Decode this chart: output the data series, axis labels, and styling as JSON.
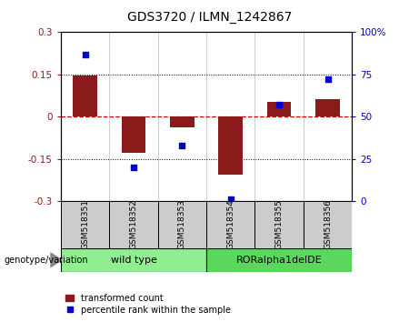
{
  "title": "GDS3720 / ILMN_1242867",
  "samples": [
    "GSM518351",
    "GSM518352",
    "GSM518353",
    "GSM518354",
    "GSM518355",
    "GSM518356"
  ],
  "bar_values": [
    0.147,
    -0.127,
    -0.038,
    -0.205,
    0.052,
    0.062
  ],
  "dot_values": [
    87,
    20,
    33,
    1,
    57,
    72
  ],
  "bar_color": "#8b1a1a",
  "dot_color": "#0000cc",
  "ylim_left": [
    -0.3,
    0.3
  ],
  "ylim_right": [
    0,
    100
  ],
  "yticks_left": [
    -0.3,
    -0.15,
    0,
    0.15,
    0.3
  ],
  "ytick_labels_left": [
    "-0.3",
    "-0.15",
    "0",
    "0.15",
    "0.3"
  ],
  "yticks_right": [
    0,
    25,
    50,
    75,
    100
  ],
  "ytick_labels_right": [
    "0",
    "25",
    "50",
    "75",
    "100%"
  ],
  "hline_color": "#cc0000",
  "dotted_lines": [
    -0.15,
    0.15
  ],
  "groups": [
    {
      "label": "wild type",
      "samples": [
        0,
        1,
        2
      ],
      "color": "#90ee90"
    },
    {
      "label": "RORalpha1delDE",
      "samples": [
        3,
        4,
        5
      ],
      "color": "#5cd65c"
    }
  ],
  "group_row_label": "genotype/variation",
  "legend_bar_label": "transformed count",
  "legend_dot_label": "percentile rank within the sample",
  "bar_width": 0.5,
  "sample_box_color": "#cccccc",
  "plot_bg_color": "#ffffff"
}
